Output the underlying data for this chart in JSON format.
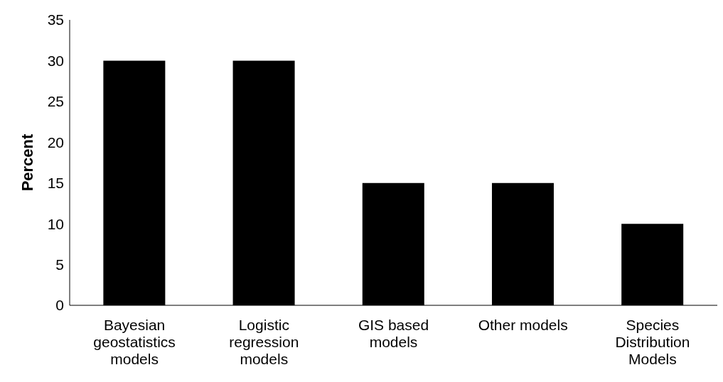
{
  "chart_data": {
    "type": "bar",
    "ylabel": "Percent",
    "categories": [
      "Bayesian geostatistics models",
      "Logistic regression models",
      "GIS based models",
      "Other models",
      "Species Distribution Models"
    ],
    "values": [
      30,
      30,
      15,
      15,
      10
    ],
    "color": "#000000",
    "ylim": [
      0,
      35
    ],
    "yticks": [
      0,
      5,
      10,
      15,
      20,
      25,
      30,
      35
    ],
    "grid": false,
    "legend": false
  }
}
